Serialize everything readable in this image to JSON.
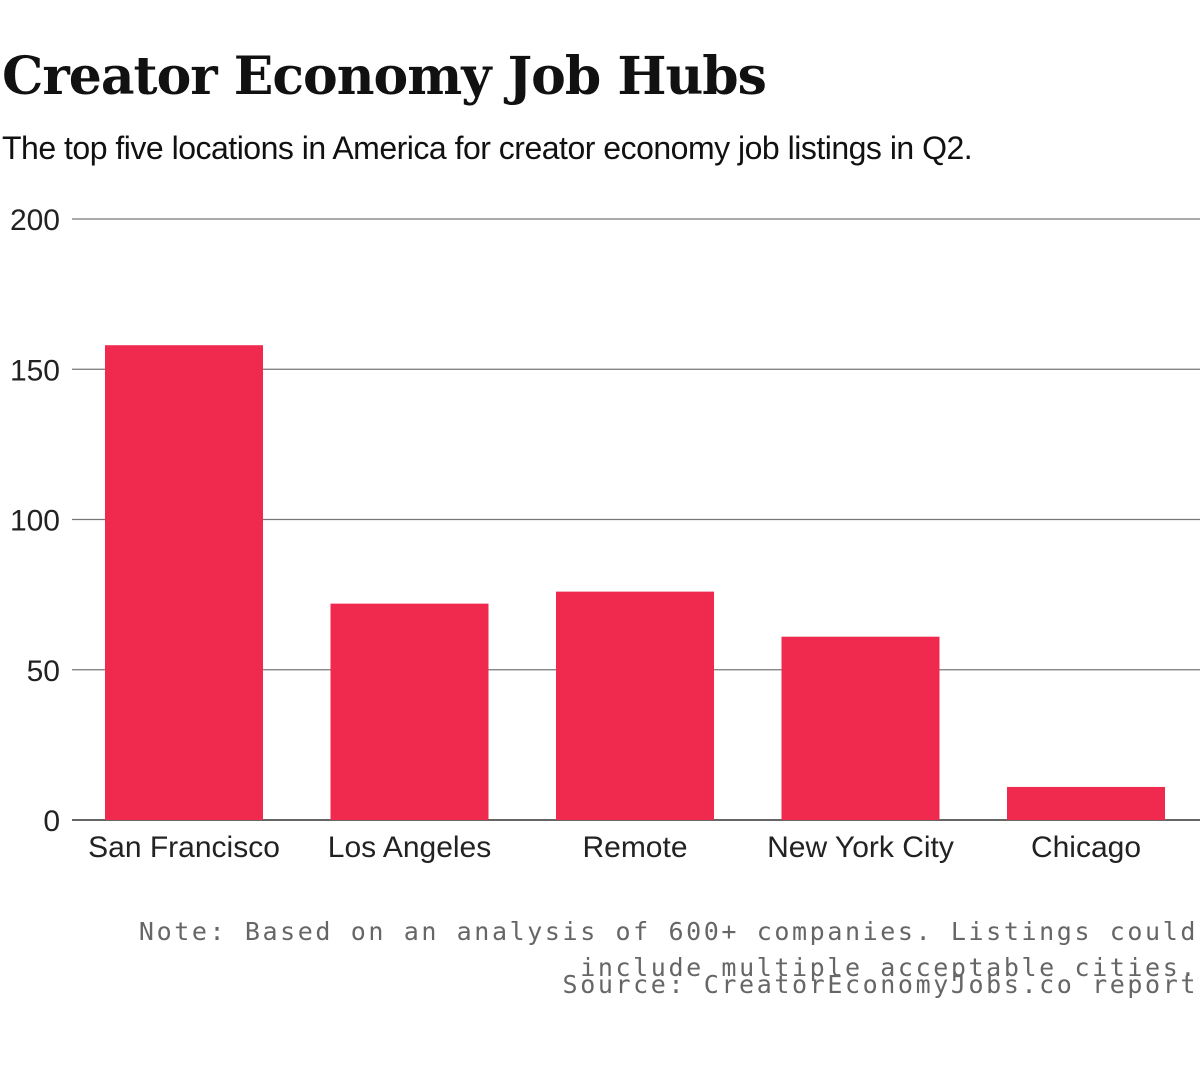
{
  "chart_data": {
    "type": "bar",
    "title": "Creator Economy Job Hubs",
    "subtitle": "The top five locations in America for creator economy job listings in Q2.",
    "categories": [
      "San Francisco",
      "Los Angeles",
      "Remote",
      "New York City",
      "Chicago"
    ],
    "values": [
      158,
      72,
      76,
      61,
      11
    ],
    "ylim": [
      0,
      200
    ],
    "yticks": [
      0,
      50,
      100,
      150,
      200
    ],
    "xlabel": "",
    "ylabel": "",
    "grid": true,
    "bar_color": "#f0294f",
    "note": "Note: Based on an analysis of 600+ companies. Listings could include multiple acceptable cities.",
    "source": "Source: CreatorEconomyJobs.co report"
  }
}
